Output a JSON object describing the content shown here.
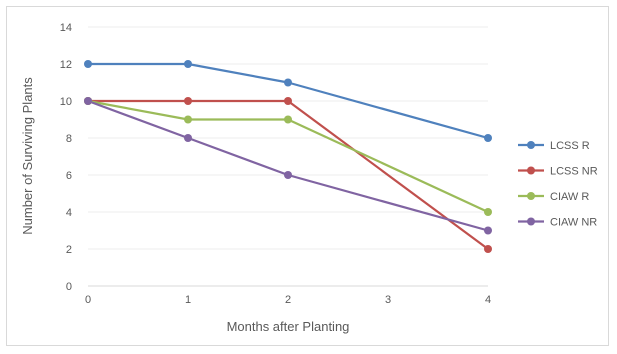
{
  "chart_data": {
    "type": "line",
    "x": [
      0,
      1,
      2,
      4
    ],
    "xticks": [
      "0",
      "1",
      "2",
      "3",
      "4"
    ],
    "xlabel": "Months after Planting",
    "ylabel": "Number of Surviving Plants",
    "xlim": [
      0,
      4
    ],
    "ylim": [
      0,
      14
    ],
    "yticks": [
      "0",
      "2",
      "4",
      "6",
      "8",
      "10",
      "12",
      "14"
    ],
    "grid": true,
    "legend_position": "right",
    "series": [
      {
        "name": "LCSS R",
        "color": "#4f81bd",
        "values": [
          12,
          12,
          11,
          8
        ]
      },
      {
        "name": "LCSS NR",
        "color": "#c0504d",
        "values": [
          10,
          10,
          10,
          2
        ]
      },
      {
        "name": "CIAW R",
        "color": "#9bbb59",
        "values": [
          10,
          9,
          9,
          4
        ]
      },
      {
        "name": "CIAW NR",
        "color": "#8064a2",
        "values": [
          10,
          8,
          6,
          3
        ]
      }
    ]
  }
}
